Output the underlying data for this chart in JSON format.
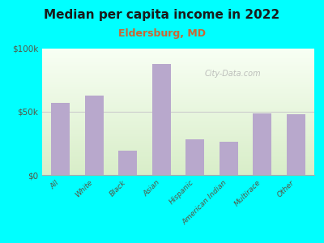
{
  "title": "Median per capita income in 2022",
  "subtitle": "Eldersburg, MD",
  "categories": [
    "All",
    "White",
    "Black",
    "Asian",
    "Hispanic",
    "American Indian",
    "Multirace",
    "Other"
  ],
  "values": [
    57000,
    63000,
    19000,
    88000,
    28000,
    26000,
    49000,
    48000
  ],
  "bar_color": "#b8a8cc",
  "ylim": [
    0,
    100000
  ],
  "yticks": [
    0,
    50000,
    100000
  ],
  "ytick_labels": [
    "$0",
    "$50k",
    "$100k"
  ],
  "bg_color": "#00ffff",
  "title_color": "#1a1a1a",
  "subtitle_color": "#cc6633",
  "tick_color": "#555544",
  "watermark": "City-Data.com"
}
